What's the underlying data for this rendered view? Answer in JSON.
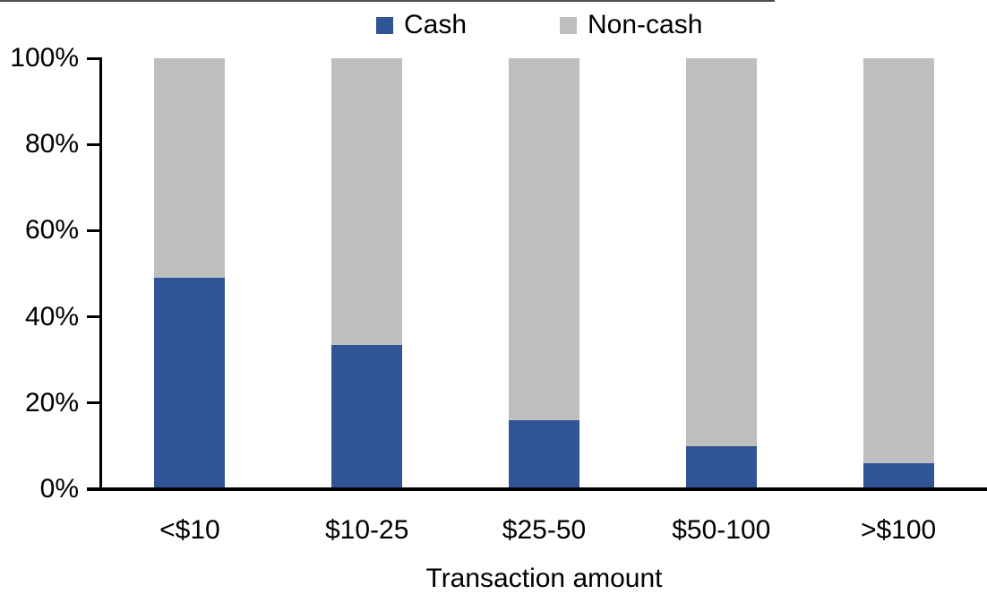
{
  "chart_data": {
    "type": "bar",
    "stacked": true,
    "percent_stacked": true,
    "xlabel": "Transaction amount",
    "ylabel": "",
    "categories": [
      "<$10",
      "$10-25",
      "$25-50",
      "$50-100",
      ">$100"
    ],
    "series": [
      {
        "name": "Cash",
        "color": "#2F5597",
        "values": [
          49,
          33.5,
          16,
          10,
          6
        ]
      },
      {
        "name": "Non-cash",
        "color": "#BFBFBF",
        "values": [
          51,
          66.5,
          84,
          90,
          94
        ]
      }
    ],
    "ylim": [
      0,
      100
    ],
    "yticks": [
      {
        "value": 0,
        "label": "0%"
      },
      {
        "value": 20,
        "label": "20%"
      },
      {
        "value": 40,
        "label": "40%"
      },
      {
        "value": 60,
        "label": "60%"
      },
      {
        "value": 80,
        "label": "80%"
      },
      {
        "value": 100,
        "label": "100%"
      }
    ],
    "legend_position": "top",
    "grid": false
  },
  "colors": {
    "cash": "#2F5597",
    "noncash": "#BFBFBF",
    "axis": "#000000",
    "background": "#FFFFFF"
  }
}
